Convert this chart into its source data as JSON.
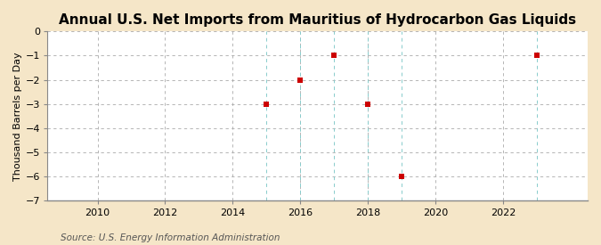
{
  "title": "Annual U.S. Net Imports from Mauritius of Hydrocarbon Gas Liquids",
  "ylabel": "Thousand Barrels per Day",
  "source": "Source: U.S. Energy Information Administration",
  "figure_bg_color": "#f5e6c8",
  "plot_bg_color": "#ffffff",
  "data_x": [
    2015,
    2016,
    2017,
    2018,
    2019,
    2023
  ],
  "data_y": [
    -3,
    -2,
    -1,
    -3,
    -6,
    -1
  ],
  "marker_color": "#cc0000",
  "marker": "s",
  "marker_size": 4,
  "xlim": [
    2008.5,
    2024.5
  ],
  "ylim": [
    -7,
    0
  ],
  "xticks": [
    2010,
    2012,
    2014,
    2016,
    2018,
    2020,
    2022
  ],
  "yticks": [
    0,
    -1,
    -2,
    -3,
    -4,
    -5,
    -6,
    -7
  ],
  "hgrid_color": "#aaaaaa",
  "vgrid_color": "#aaaaaa",
  "vline_data_color": "#88cccc",
  "grid_linestyle": "--",
  "title_fontsize": 11,
  "label_fontsize": 8,
  "tick_fontsize": 8,
  "source_fontsize": 7.5
}
